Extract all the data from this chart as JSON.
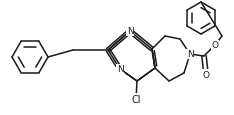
{
  "bg_color": "#ffffff",
  "line_color": "#1a1a1a",
  "line_width": 1.1,
  "font_size_atom": 6.5,
  "figsize": [
    2.34,
    1.16
  ],
  "dpi": 100,
  "xlim": [
    0,
    234
  ],
  "ylim": [
    0,
    116
  ]
}
